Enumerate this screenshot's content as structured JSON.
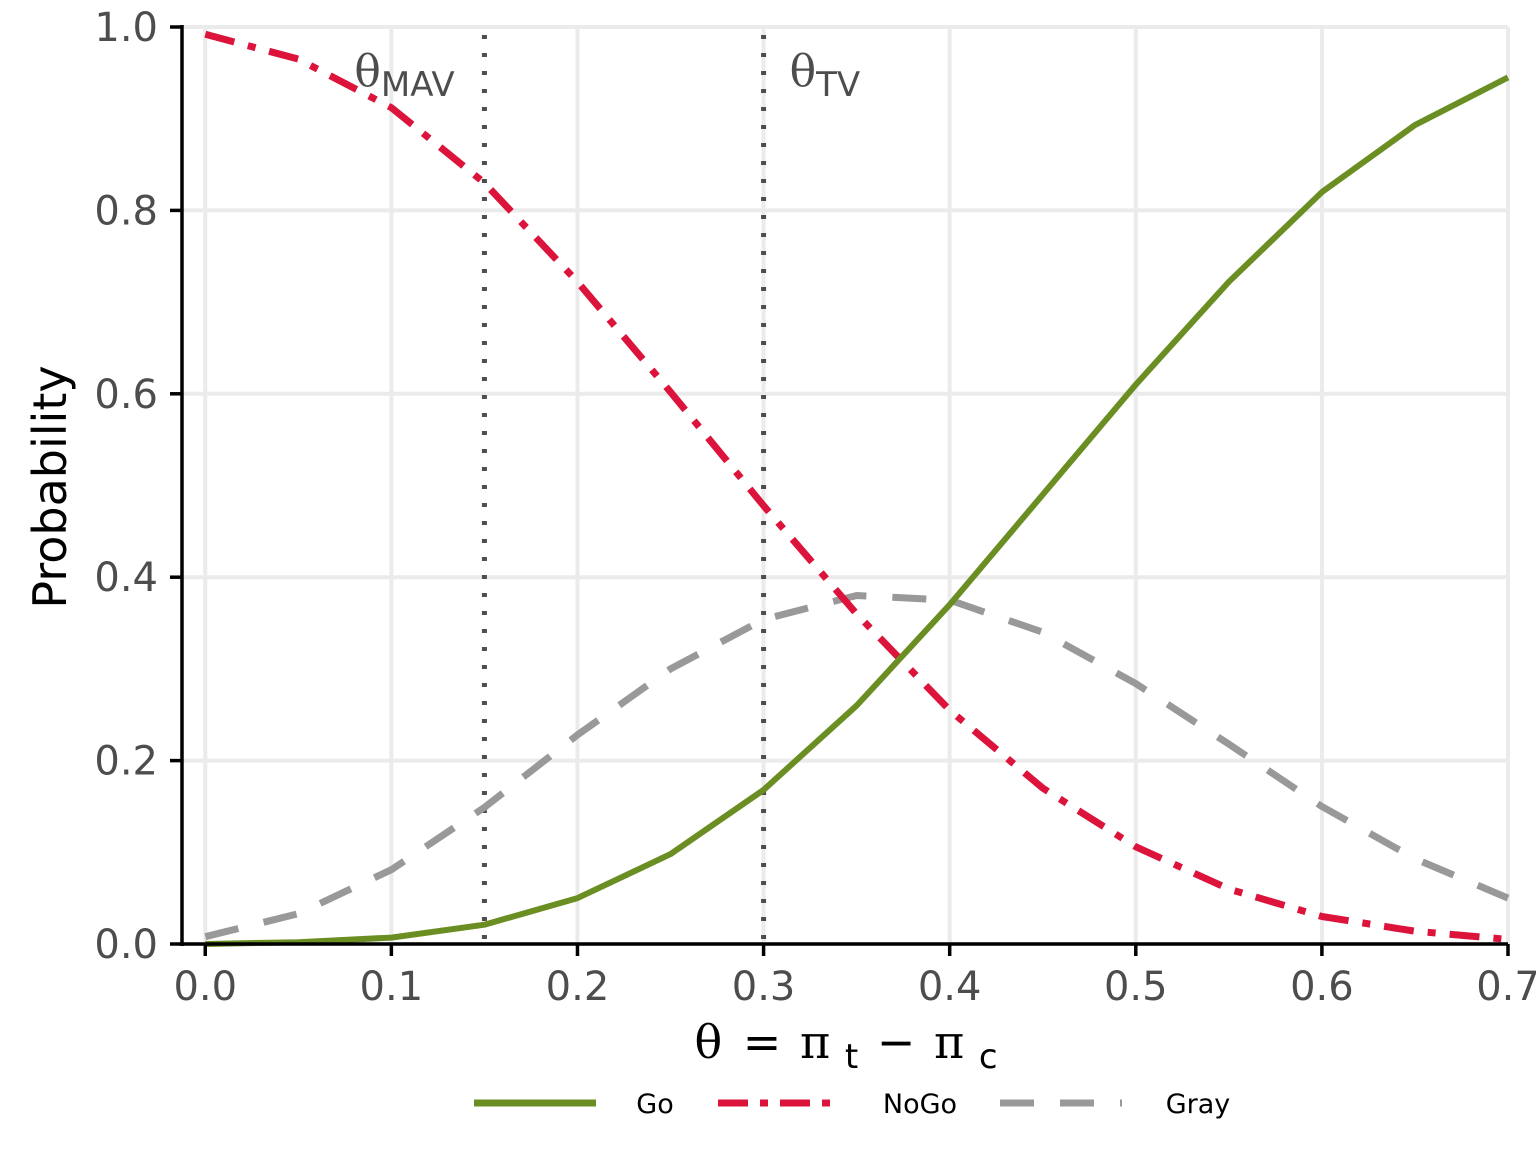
{
  "chart_data": {
    "type": "line",
    "title": "",
    "xlabel": "θ = π_t − π_c",
    "ylabel": "Probability",
    "xlim": [
      -0.0125,
      0.7
    ],
    "ylim": [
      0,
      1
    ],
    "xticks": [
      0.0,
      0.1,
      0.2,
      0.3,
      0.4,
      0.5,
      0.6,
      0.7
    ],
    "xtick_labels": [
      "0.0",
      "0.1",
      "0.2",
      "0.3",
      "0.4",
      "0.5",
      "0.6",
      "0.7"
    ],
    "yticks": [
      0.0,
      0.2,
      0.4,
      0.6,
      0.8,
      1.0
    ],
    "ytick_labels": [
      "0.0",
      "0.2",
      "0.4",
      "0.6",
      "0.8",
      "1.0"
    ],
    "grid": true,
    "legend_position": "bottom",
    "x": [
      0.0,
      0.05,
      0.1,
      0.15,
      0.2,
      0.25,
      0.3,
      0.35,
      0.4,
      0.45,
      0.5,
      0.55,
      0.6,
      0.65,
      0.7
    ],
    "series": [
      {
        "name": "Go",
        "color": "#6b8e23",
        "line_style": "solid",
        "values": [
          0.0,
          0.002,
          0.007,
          0.021,
          0.05,
          0.098,
          0.168,
          0.26,
          0.37,
          0.49,
          0.61,
          0.722,
          0.82,
          0.893,
          0.945
        ]
      },
      {
        "name": "NoGo",
        "color": "#dc143c",
        "line_style": "dashdot",
        "values": [
          0.992,
          0.965,
          0.912,
          0.83,
          0.722,
          0.602,
          0.478,
          0.36,
          0.255,
          0.17,
          0.106,
          0.06,
          0.03,
          0.014,
          0.005
        ]
      },
      {
        "name": "Gray",
        "color": "#999999",
        "line_style": "dashed",
        "values": [
          0.008,
          0.033,
          0.081,
          0.149,
          0.228,
          0.3,
          0.354,
          0.38,
          0.375,
          0.34,
          0.284,
          0.218,
          0.15,
          0.093,
          0.05
        ]
      }
    ],
    "reference_lines": [
      {
        "x": 0.15,
        "label_main": "θ",
        "label_sub": "MAV",
        "color": "#4d4d4d",
        "line_style": "dotted"
      },
      {
        "x": 0.3,
        "label_main": "θ",
        "label_sub": "TV",
        "color": "#4d4d4d",
        "line_style": "dotted"
      }
    ],
    "xlabel_parts": {
      "theta": "θ",
      "eq": "=",
      "pi1": "π",
      "sub1": "t",
      "minus": "−",
      "pi2": "π",
      "sub2": "c"
    }
  }
}
